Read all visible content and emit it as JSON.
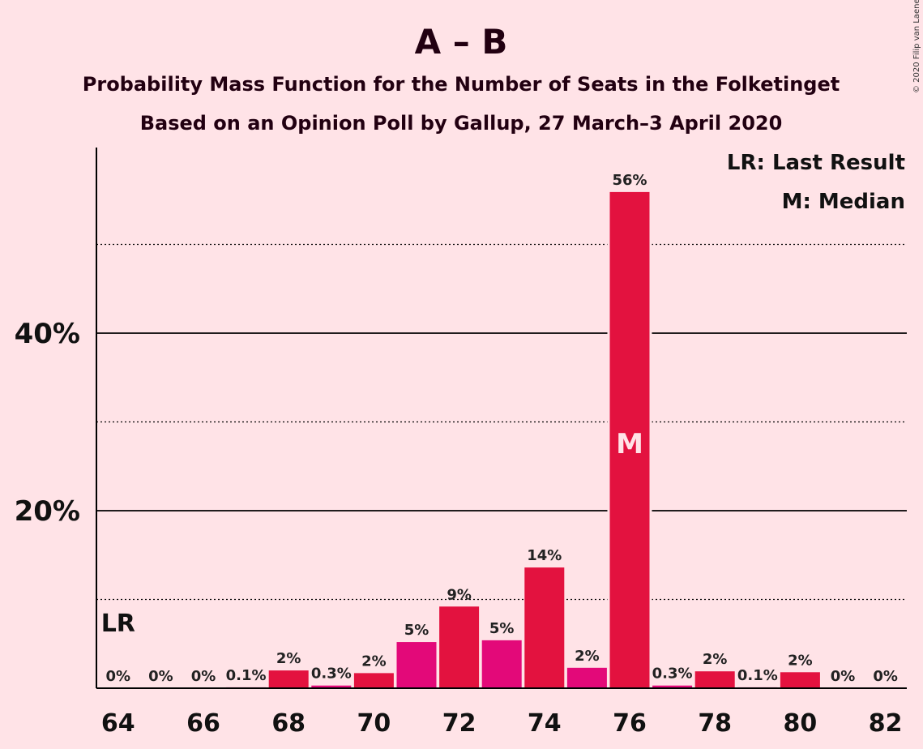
{
  "chart_data": {
    "type": "bar",
    "title": "A – B",
    "subtitle_1": "Probability Mass Function for the Number of Seats in the Folketinget",
    "subtitle_2": "Based on an Opinion Poll by Gallup, 27 March–3 April 2020",
    "copyright": "© 2020 Filip van Laenen",
    "legend": {
      "lr": "LR: Last Result",
      "median": "M: Median",
      "position": "top-right"
    },
    "lr_marker": {
      "label": "LR",
      "seat": 64
    },
    "median_marker": {
      "label": "M",
      "seat": 76
    },
    "x": [
      64,
      65,
      66,
      67,
      68,
      69,
      70,
      71,
      72,
      73,
      74,
      75,
      76,
      77,
      78,
      79,
      80,
      81,
      82
    ],
    "values": [
      0,
      0,
      0,
      0.1,
      2,
      0.3,
      1.7,
      5.2,
      9.2,
      5.4,
      13.6,
      2.3,
      55.9,
      0.3,
      1.9,
      0.1,
      1.8,
      0,
      0
    ],
    "value_labels": [
      "0%",
      "0%",
      "0%",
      "0.1%",
      "2%",
      "0.3%",
      "2%",
      "5%",
      "9%",
      "5%",
      "14%",
      "2%",
      "56%",
      "0.3%",
      "2%",
      "0.1%",
      "2%",
      "0%",
      "0%"
    ],
    "x_tick_labels": [
      "64",
      "66",
      "68",
      "70",
      "72",
      "74",
      "76",
      "78",
      "80",
      "82"
    ],
    "y_tick_labels": [
      "20%",
      "40%"
    ],
    "ylim": [
      0,
      60
    ],
    "grid": {
      "solid": [
        20,
        40
      ],
      "dotted": [
        10,
        30,
        50
      ]
    },
    "colors": {
      "background": "#FFE3E7",
      "bar_even": "#E3123F",
      "bar_odd": "#E30979",
      "text_dark": "#220011"
    }
  }
}
